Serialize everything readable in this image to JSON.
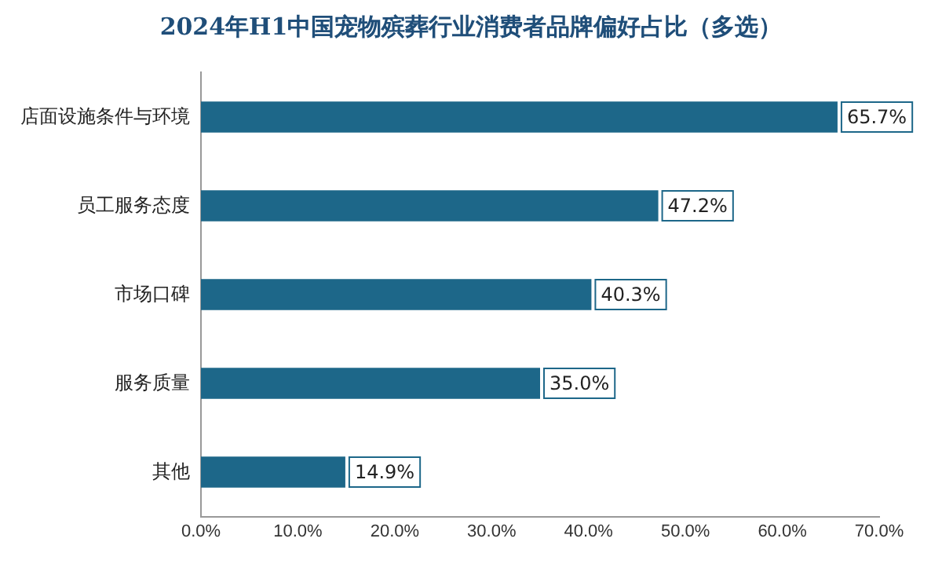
{
  "chart_data": {
    "type": "bar",
    "orientation": "horizontal",
    "title": "2024年H1中国宠物殡葬行业消费者品牌偏好占比（多选）",
    "categories": [
      "店面设施条件与环境",
      "员工服务态度",
      "市场口碑",
      "服务质量",
      "其他"
    ],
    "values": [
      65.7,
      47.2,
      40.3,
      35.0,
      14.9
    ],
    "value_labels": [
      "65.7%",
      "47.2%",
      "40.3%",
      "35.0%",
      "14.9%"
    ],
    "color": "#1d6789",
    "xlim": [
      0,
      70
    ],
    "xticks": [
      {
        "value": 0,
        "label": "0.0%"
      },
      {
        "value": 10,
        "label": "10.0%"
      },
      {
        "value": 20,
        "label": "20.0%"
      },
      {
        "value": 30,
        "label": "30.0%"
      },
      {
        "value": 40,
        "label": "40.0%"
      },
      {
        "value": 50,
        "label": "50.0%"
      },
      {
        "value": 60,
        "label": "60.0%"
      },
      {
        "value": 70,
        "label": "70.0%"
      }
    ],
    "grid": false,
    "legend": false
  }
}
